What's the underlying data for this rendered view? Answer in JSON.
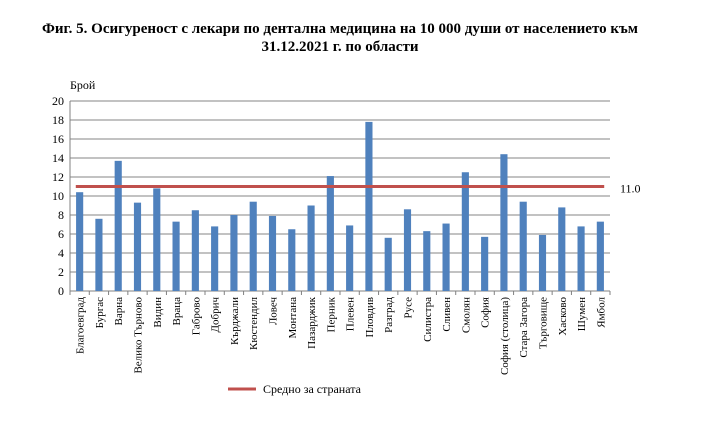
{
  "chart_data": {
    "type": "bar",
    "title": "Фиг. 5. Осигуреност с лекари по дентална медицина на 10 000 души от населението към 31.12.2021 г. по области",
    "ylabel": "Брой",
    "ylim": [
      0,
      20
    ],
    "yticks": [
      0,
      2,
      4,
      6,
      8,
      10,
      12,
      14,
      16,
      18,
      20
    ],
    "grid": true,
    "categories": [
      "Благоевград",
      "Бургас",
      "Варна",
      "Велико Търново",
      "Видин",
      "Враца",
      "Габрово",
      "Добрич",
      "Кърджали",
      "Кюстендил",
      "Ловеч",
      "Монтана",
      "Пазарджик",
      "Перник",
      "Плевен",
      "Пловдив",
      "Разград",
      "Русе",
      "Силистра",
      "Сливен",
      "Смолян",
      "София",
      "София (столица)",
      "Стара Загора",
      "Търговище",
      "Хасково",
      "Шумен",
      "Ямбол"
    ],
    "series": [
      {
        "values": [
          10.4,
          7.6,
          13.7,
          9.3,
          10.8,
          7.3,
          8.5,
          6.8,
          8.0,
          9.4,
          7.9,
          6.5,
          9.0,
          12.1,
          6.9,
          17.8,
          5.6,
          8.6,
          6.3,
          7.1,
          12.5,
          5.7,
          14.4,
          9.4,
          5.9,
          8.8,
          6.8,
          7.3
        ],
        "color": "#4f81bd"
      }
    ],
    "reference_line": {
      "name": "Средно за страната",
      "value": 11.0,
      "label": "11.0",
      "color": "#c0504d"
    },
    "legend": "bottom"
  }
}
